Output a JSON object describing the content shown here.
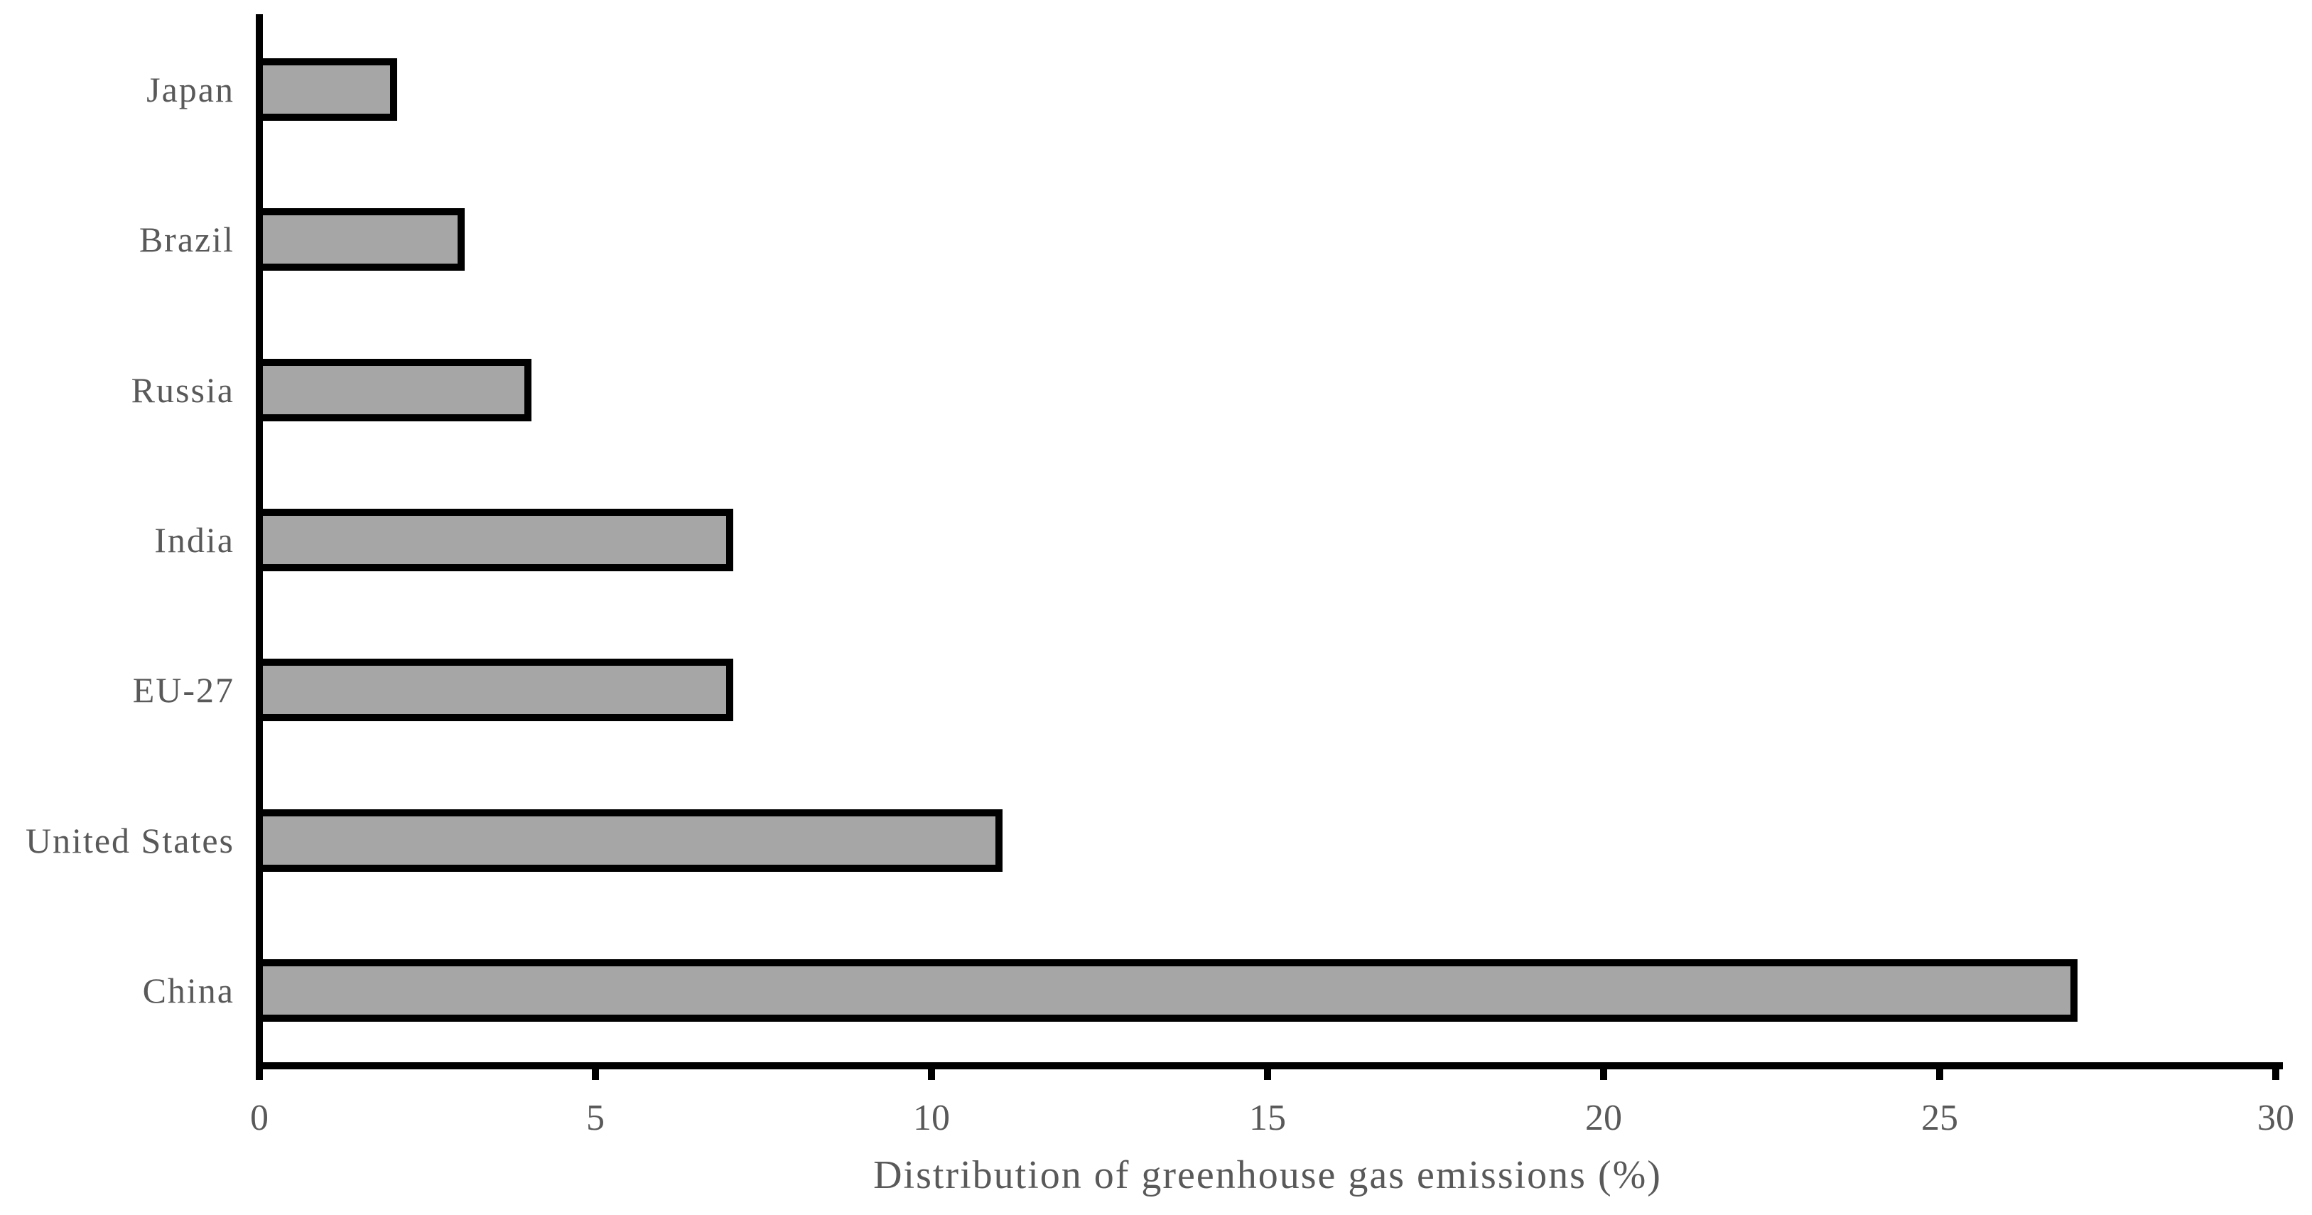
{
  "chart_data": {
    "type": "bar",
    "orientation": "horizontal",
    "title": "",
    "xlabel": "Distribution of greenhouse gas emissions (%)",
    "ylabel": "",
    "categories": [
      "Japan",
      "Brazil",
      "Russia",
      "India",
      "EU-27",
      "United States",
      "China"
    ],
    "values": [
      2,
      3,
      4,
      7,
      7,
      11,
      27
    ],
    "xlim": [
      0,
      30
    ],
    "xticks": [
      0,
      5,
      10,
      15,
      20,
      25,
      30
    ],
    "grid": false,
    "legend": false,
    "colors": {
      "bar_fill": "#a6a6a6",
      "bar_border": "#000000",
      "axis": "#000000",
      "text": "#595959",
      "background": "#ffffff"
    }
  }
}
